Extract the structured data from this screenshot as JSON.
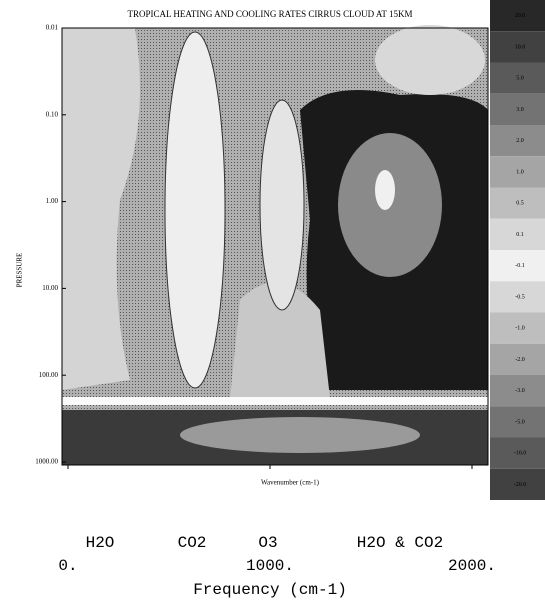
{
  "chart_data": {
    "type": "contour",
    "title": "TROPICAL HEATING AND COOLING RATES CIRRUS CLOUD AT 15KM",
    "ylabel": "PRESSURE",
    "xlabel_small": "Wavenumber (cm-1)",
    "xlabel": "Frequency (cm-1)",
    "log_y": true,
    "ylim": [
      0.01,
      1000
    ],
    "yticks": [
      {
        "value": 0.01,
        "label": "0.01"
      },
      {
        "value": 0.1,
        "label": "0.10"
      },
      {
        "value": 1,
        "label": "1.00"
      },
      {
        "value": 10,
        "label": "10.00"
      },
      {
        "value": 100,
        "label": "100.00"
      },
      {
        "value": 1000,
        "label": "1000.00"
      }
    ],
    "xlim": [
      0,
      2000
    ],
    "xticks": [
      {
        "value": 0,
        "label": "0."
      },
      {
        "value": 1000,
        "label": "1000."
      },
      {
        "value": 2000,
        "label": "2000."
      }
    ],
    "bands": [
      "H2O",
      "CO2",
      "O3",
      "H2O & CO2"
    ],
    "colorbar": [
      "20.0",
      "10.0",
      "5.0",
      "3.0",
      "2.0",
      "1.0",
      "0.5",
      "0.1",
      "-0.1",
      "-0.5",
      "-1.0",
      "-2.0",
      "-3.0",
      "-5.0",
      "-10.0",
      "-20.0"
    ]
  }
}
